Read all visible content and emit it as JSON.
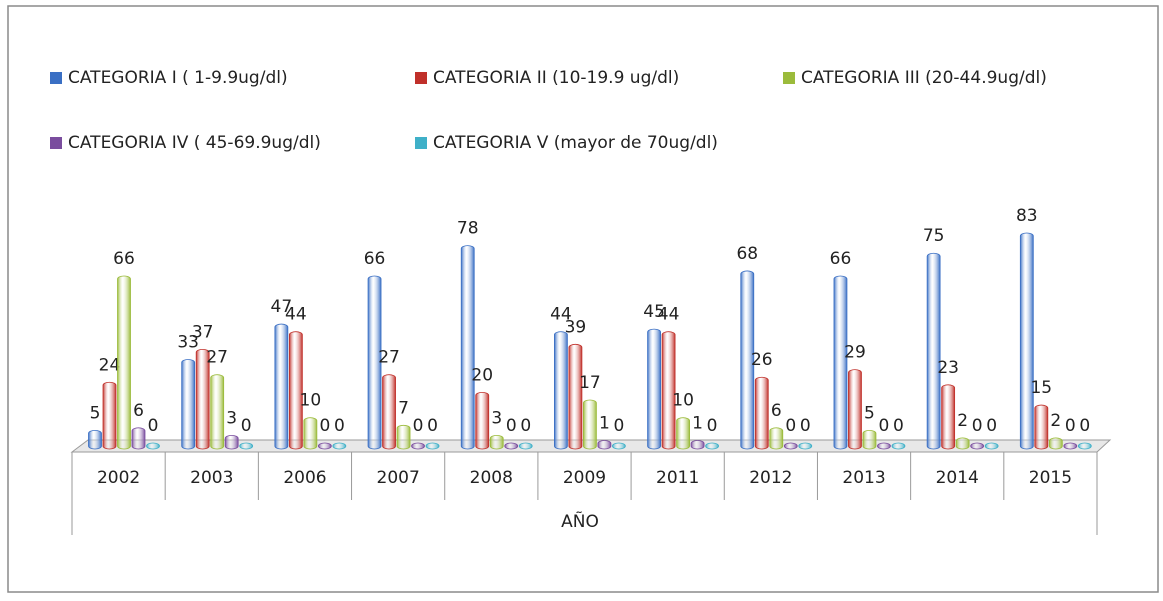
{
  "chart_data": {
    "type": "bar3d",
    "categories": [
      "2002",
      "2003",
      "2006",
      "2007",
      "2008",
      "2009",
      "2011",
      "2012",
      "2013",
      "2014",
      "2015"
    ],
    "x_label": "AÑO",
    "series": [
      {
        "name": "CATEGORIA I ( 1-9.9ug/dl)",
        "color": "#3a6fc4",
        "values": [
          5,
          33,
          47,
          66,
          78,
          44,
          45,
          68,
          66,
          75,
          83
        ]
      },
      {
        "name": "CATEGORIA II (10-19.9 ug/dl)",
        "color": "#c0302a",
        "values": [
          24,
          37,
          44,
          27,
          20,
          39,
          44,
          26,
          29,
          23,
          15
        ]
      },
      {
        "name": "CATEGORIA III (20-44.9ug/dl)",
        "color": "#9bbb3b",
        "values": [
          66,
          27,
          10,
          7,
          3,
          17,
          10,
          6,
          5,
          2,
          2
        ]
      },
      {
        "name": "CATEGORIA IV ( 45-69.9ug/dl)",
        "color": "#7a4d9e",
        "values": [
          6,
          3,
          0,
          0,
          0,
          1,
          1,
          0,
          0,
          0,
          0
        ]
      },
      {
        "name": "CATEGORIA V (mayor de 70ug/dl)",
        "color": "#3fb0c8",
        "values": [
          0,
          0,
          0,
          0,
          0,
          0,
          0,
          0,
          0,
          0,
          0
        ]
      }
    ]
  }
}
